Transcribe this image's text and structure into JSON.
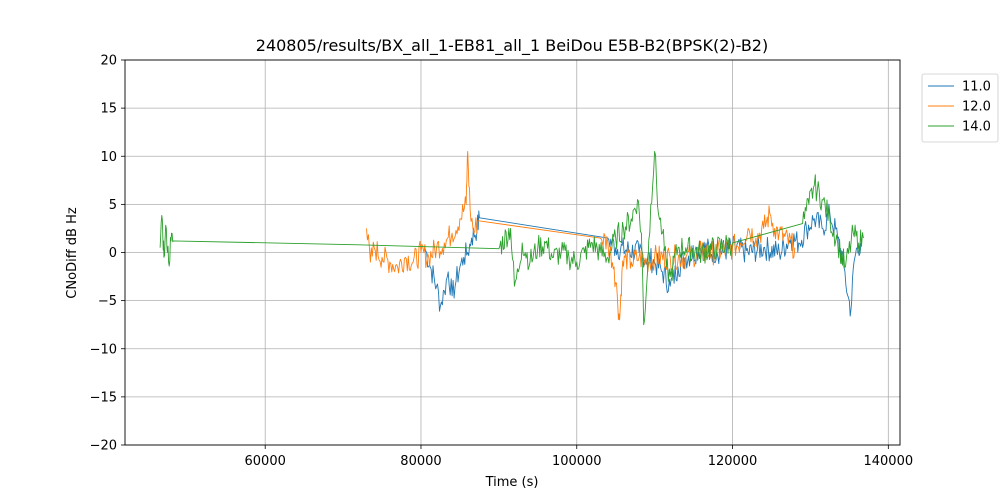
{
  "chart_data": {
    "type": "line",
    "title": "240805/results/BX_all_1-EB81_all_1 BeiDou E5B-B2(BPSK(2)-B2)",
    "xlabel": "Time (s)",
    "ylabel": "CNoDiff dB Hz",
    "xlim": [
      42000,
      141500
    ],
    "ylim": [
      -20,
      20
    ],
    "xticks": [
      60000,
      80000,
      100000,
      120000,
      140000
    ],
    "yticks": [
      -20,
      -15,
      -10,
      -5,
      0,
      5,
      10,
      15,
      20
    ],
    "grid": true,
    "legend_position": "outside-top-right",
    "series": [
      {
        "name": "11.0",
        "color": "#1f77b4",
        "points": [
          [
            80500,
            0.5
          ],
          [
            81200,
            -1.5
          ],
          [
            82000,
            -3.5
          ],
          [
            82500,
            -5.5
          ],
          [
            83000,
            -4.0
          ],
          [
            83500,
            -2.0
          ],
          [
            84000,
            -4.5
          ],
          [
            84500,
            -3.0
          ],
          [
            85000,
            -1.5
          ],
          [
            85500,
            -0.5
          ],
          [
            86000,
            0.0
          ],
          [
            86500,
            1.5
          ],
          [
            87200,
            2.5
          ],
          [
            87500,
            3.6
          ],
          [
            104000,
            1.5
          ],
          [
            105000,
            0.5
          ],
          [
            108000,
            0.0
          ],
          [
            110000,
            -1.0
          ],
          [
            111000,
            -2.0
          ],
          [
            112000,
            -3.5
          ],
          [
            113000,
            -1.5
          ],
          [
            114000,
            -0.5
          ],
          [
            116000,
            0.5
          ],
          [
            118000,
            0.0
          ],
          [
            120000,
            0.5
          ],
          [
            122000,
            0.0
          ],
          [
            124000,
            0.5
          ],
          [
            126000,
            0.0
          ],
          [
            127500,
            1.5
          ],
          [
            128500,
            1.0
          ],
          [
            129500,
            2.5
          ],
          [
            130500,
            3.5
          ],
          [
            131500,
            2.5
          ],
          [
            132500,
            4.0
          ],
          [
            133500,
            1.5
          ],
          [
            134300,
            -1.5
          ],
          [
            134800,
            -4.5
          ],
          [
            135200,
            -6.0
          ],
          [
            135600,
            -1.0
          ],
          [
            136000,
            0.5
          ],
          [
            136500,
            1.0
          ]
        ]
      },
      {
        "name": "12.0",
        "color": "#ff7f0e",
        "points": [
          [
            73000,
            2.5
          ],
          [
            73500,
            -1.0
          ],
          [
            74000,
            0.5
          ],
          [
            75000,
            -0.5
          ],
          [
            76000,
            -1.0
          ],
          [
            77000,
            -1.5
          ],
          [
            78000,
            -0.5
          ],
          [
            79000,
            -1.0
          ],
          [
            80000,
            0.0
          ],
          [
            81000,
            -0.5
          ],
          [
            82000,
            0.5
          ],
          [
            83000,
            1.0
          ],
          [
            84000,
            2.0
          ],
          [
            85000,
            3.5
          ],
          [
            85800,
            5.0
          ],
          [
            86000,
            10.5
          ],
          [
            86300,
            4.5
          ],
          [
            86800,
            2.0
          ],
          [
            87300,
            3.3
          ],
          [
            103000,
            1.5
          ],
          [
            104000,
            1.0
          ],
          [
            104800,
            -1.5
          ],
          [
            105200,
            -4.5
          ],
          [
            105500,
            -7.0
          ],
          [
            105800,
            -2.0
          ],
          [
            106200,
            -0.5
          ],
          [
            107000,
            -1.0
          ],
          [
            108000,
            -0.5
          ],
          [
            109000,
            -1.0
          ],
          [
            110000,
            -0.5
          ],
          [
            112000,
            -0.5
          ],
          [
            114000,
            -0.5
          ],
          [
            116000,
            0.0
          ],
          [
            118000,
            0.0
          ],
          [
            120000,
            0.5
          ],
          [
            121000,
            1.0
          ],
          [
            122000,
            2.5
          ],
          [
            123000,
            1.5
          ],
          [
            124000,
            2.5
          ],
          [
            124800,
            4.0
          ],
          [
            125400,
            2.5
          ],
          [
            126000,
            2.0
          ],
          [
            128000,
            0.5
          ]
        ]
      },
      {
        "name": "14.0",
        "color": "#2ca02c",
        "points": [
          [
            46500,
            0.5
          ],
          [
            46800,
            3.3
          ],
          [
            47000,
            -0.5
          ],
          [
            47300,
            2.5
          ],
          [
            47600,
            -1.0
          ],
          [
            47900,
            1.2
          ],
          [
            48200,
            1.2
          ],
          [
            72000,
            0.8
          ],
          [
            90000,
            0.4
          ],
          [
            91500,
            2.5
          ],
          [
            92000,
            -3.5
          ],
          [
            92500,
            -2.0
          ],
          [
            93000,
            1.0
          ],
          [
            94000,
            -1.0
          ],
          [
            95000,
            0.5
          ],
          [
            96000,
            1.0
          ],
          [
            97000,
            -0.5
          ],
          [
            98000,
            0.0
          ],
          [
            99000,
            -0.5
          ],
          [
            100000,
            -1.0
          ],
          [
            101000,
            0.0
          ],
          [
            102000,
            1.0
          ],
          [
            103000,
            0.0
          ],
          [
            104000,
            -0.5
          ],
          [
            105000,
            1.5
          ],
          [
            106000,
            2.5
          ],
          [
            107000,
            3.5
          ],
          [
            107800,
            5.5
          ],
          [
            108300,
            2.0
          ],
          [
            108600,
            -7.5
          ],
          [
            109000,
            -3.0
          ],
          [
            109500,
            5.0
          ],
          [
            110000,
            10.5
          ],
          [
            110500,
            4.0
          ],
          [
            111000,
            2.0
          ],
          [
            111500,
            -1.5
          ],
          [
            112000,
            -2.5
          ],
          [
            113000,
            0.5
          ],
          [
            114000,
            0.5
          ],
          [
            116000,
            0.0
          ],
          [
            118000,
            0.5
          ],
          [
            120000,
            1.0
          ],
          [
            129000,
            3.0
          ],
          [
            129800,
            5.0
          ],
          [
            130500,
            7.0
          ],
          [
            131500,
            5.5
          ],
          [
            132500,
            3.5
          ],
          [
            133500,
            1.0
          ],
          [
            134500,
            -1.5
          ],
          [
            135500,
            2.0
          ],
          [
            136200,
            1.0
          ],
          [
            136800,
            1.5
          ]
        ]
      }
    ]
  }
}
